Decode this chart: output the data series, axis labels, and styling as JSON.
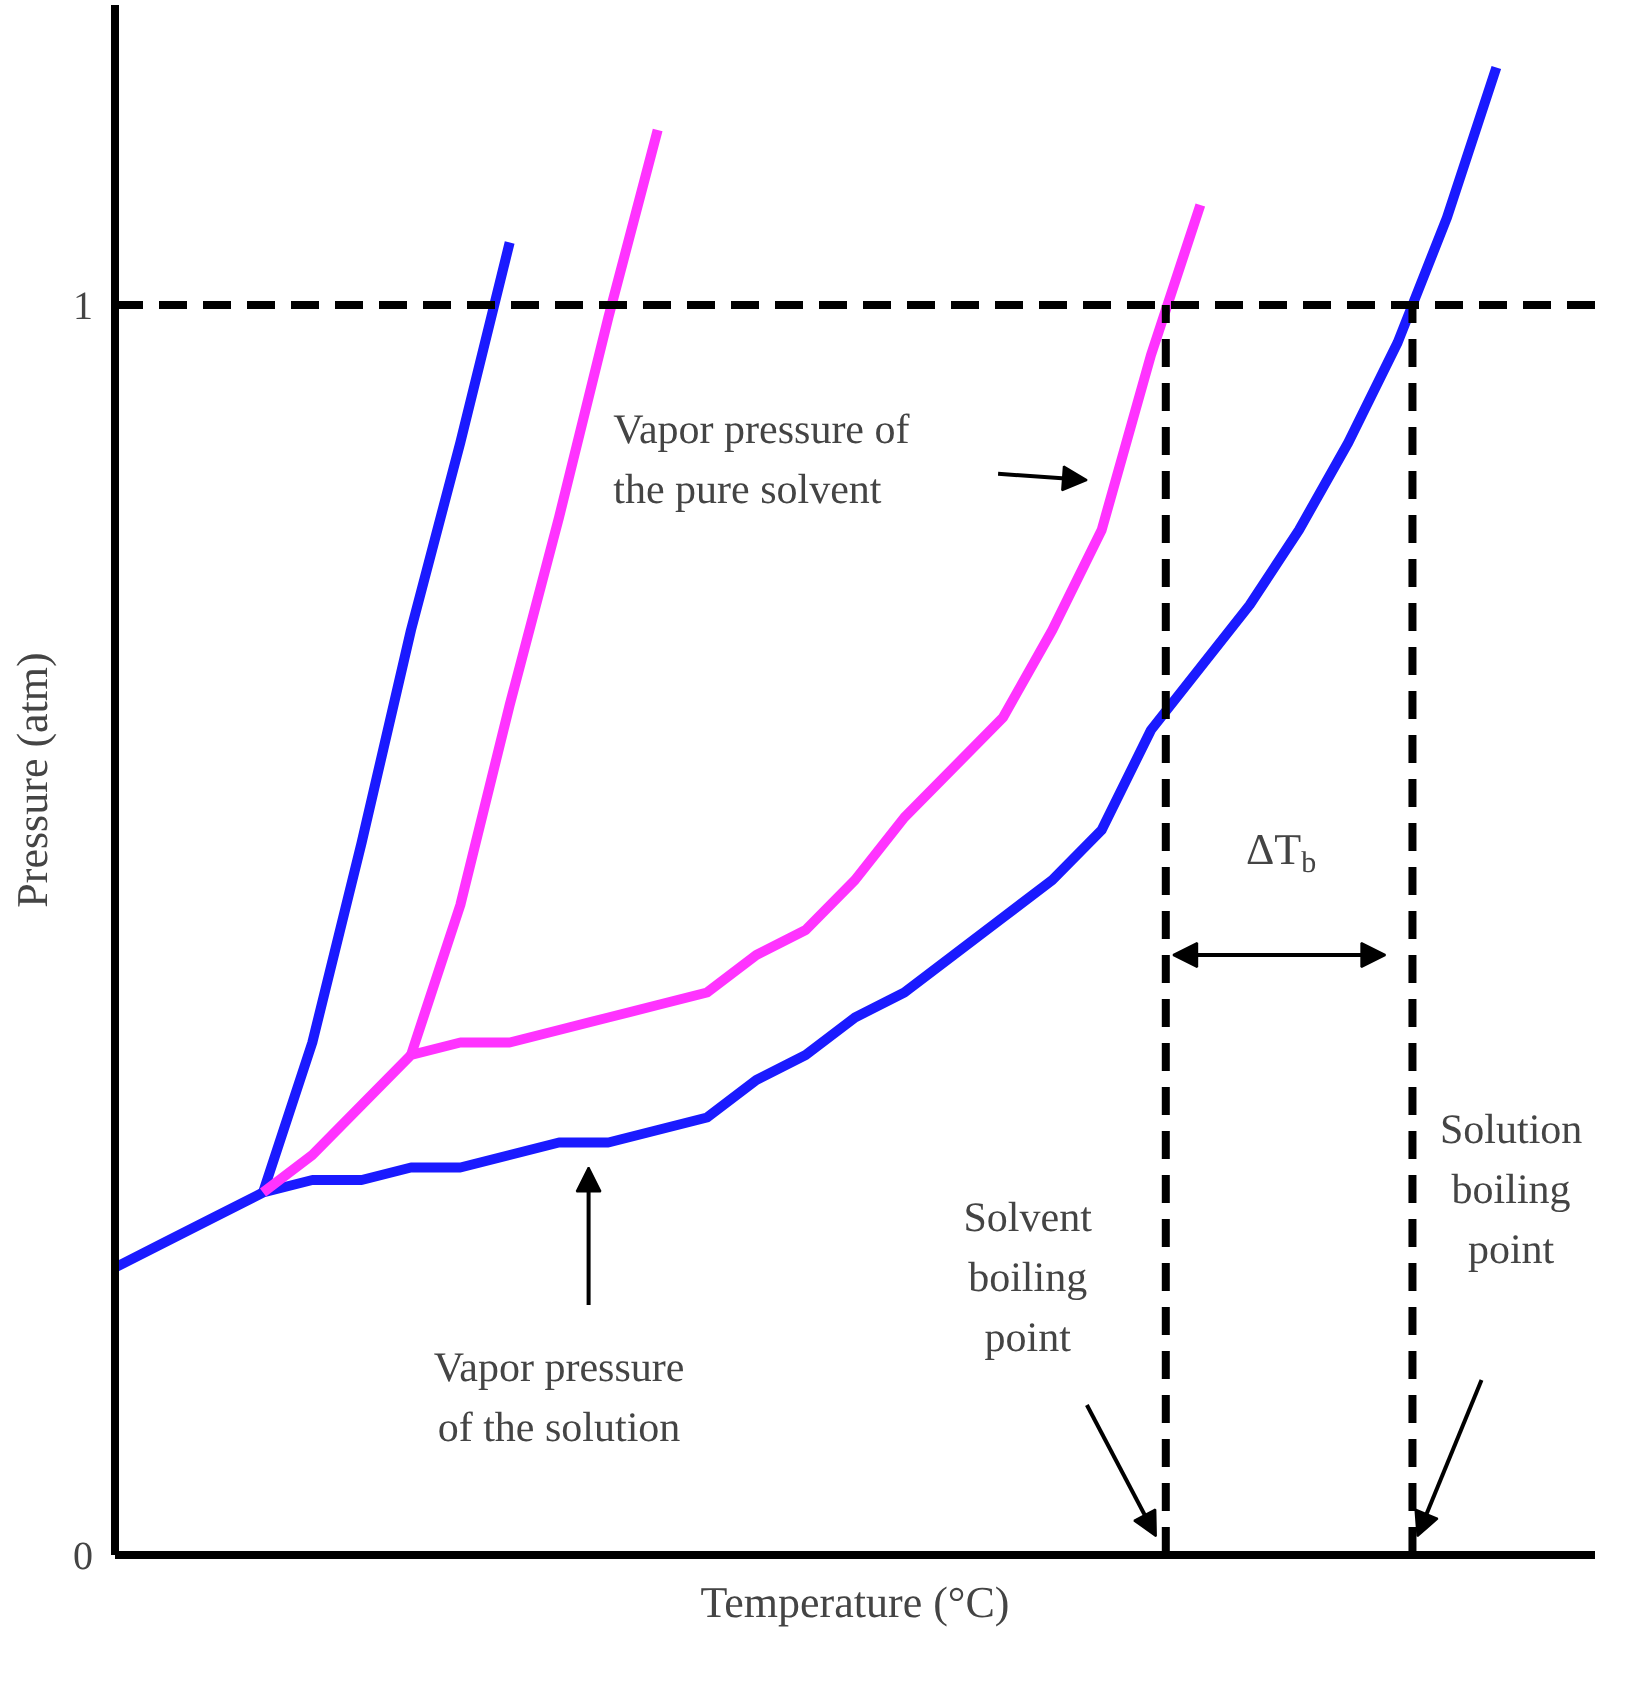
{
  "chart_data": {
    "type": "line",
    "xlabel": "Temperature (°C)",
    "ylabel": "Pressure (atm)",
    "categories": [
      null,
      null,
      null,
      null,
      null,
      null,
      null,
      null,
      null,
      null,
      null,
      null,
      null,
      null,
      null,
      null,
      null,
      null,
      null,
      null,
      null,
      null,
      null,
      null,
      null,
      null,
      null,
      null,
      null,
      null,
      null
    ],
    "ylim": [
      0,
      1.24
    ],
    "yticks": [
      0,
      1
    ],
    "tick_labels": "y",
    "grid": false,
    "marker": "none",
    "line_style": "solid",
    "series": [
      {
        "color": "#1a1aff",
        "values": [
          0.23,
          0.25,
          0.27,
          0.29,
          0.3,
          0.3,
          0.31,
          0.31,
          0.32,
          0.33,
          0.33,
          0.34,
          0.35,
          0.38,
          0.4,
          0.43,
          0.45,
          0.48,
          0.51,
          0.54,
          0.58,
          0.66,
          0.71,
          0.76,
          0.82,
          0.89,
          0.97,
          1.07,
          1.19,
          null,
          null
        ]
      },
      {
        "color": "#1a1aff",
        "values": [
          null,
          null,
          null,
          0.29,
          0.41,
          0.57,
          0.74,
          0.89,
          1.05,
          null,
          null,
          null,
          null,
          null,
          null,
          null,
          null,
          null,
          null,
          null,
          null,
          null,
          null,
          null,
          null,
          null,
          null,
          null,
          null,
          null,
          null
        ]
      },
      {
        "color": "#ff33ff",
        "values": [
          null,
          null,
          null,
          0.29,
          0.32,
          0.36,
          0.4,
          0.41,
          0.41,
          0.42,
          0.43,
          0.44,
          0.45,
          0.48,
          0.5,
          0.54,
          0.59,
          0.63,
          0.67,
          0.74,
          0.82,
          0.96,
          1.08,
          null,
          null,
          null,
          null,
          null,
          null,
          null,
          null
        ]
      },
      {
        "color": "#ff33ff",
        "values": [
          null,
          null,
          null,
          null,
          null,
          null,
          0.4,
          0.52,
          0.68,
          0.83,
          0.99,
          1.14,
          null,
          null,
          null,
          null,
          null,
          null,
          null,
          null,
          null,
          null,
          null,
          null,
          null,
          null,
          null,
          null,
          null,
          null,
          null
        ]
      }
    ],
    "ref_lines": [
      {
        "axis": "y",
        "value": 1,
        "color": "#000000",
        "line_style": "dashed"
      }
    ],
    "annotations": [
      "Vapor pressure of\nthe pure solvent",
      "Vapor pressure\nof the solution",
      "Solvent\nboiling\npoint",
      "Solution\nboiling\npoint",
      "ΔT$_{b}$"
    ]
  }
}
